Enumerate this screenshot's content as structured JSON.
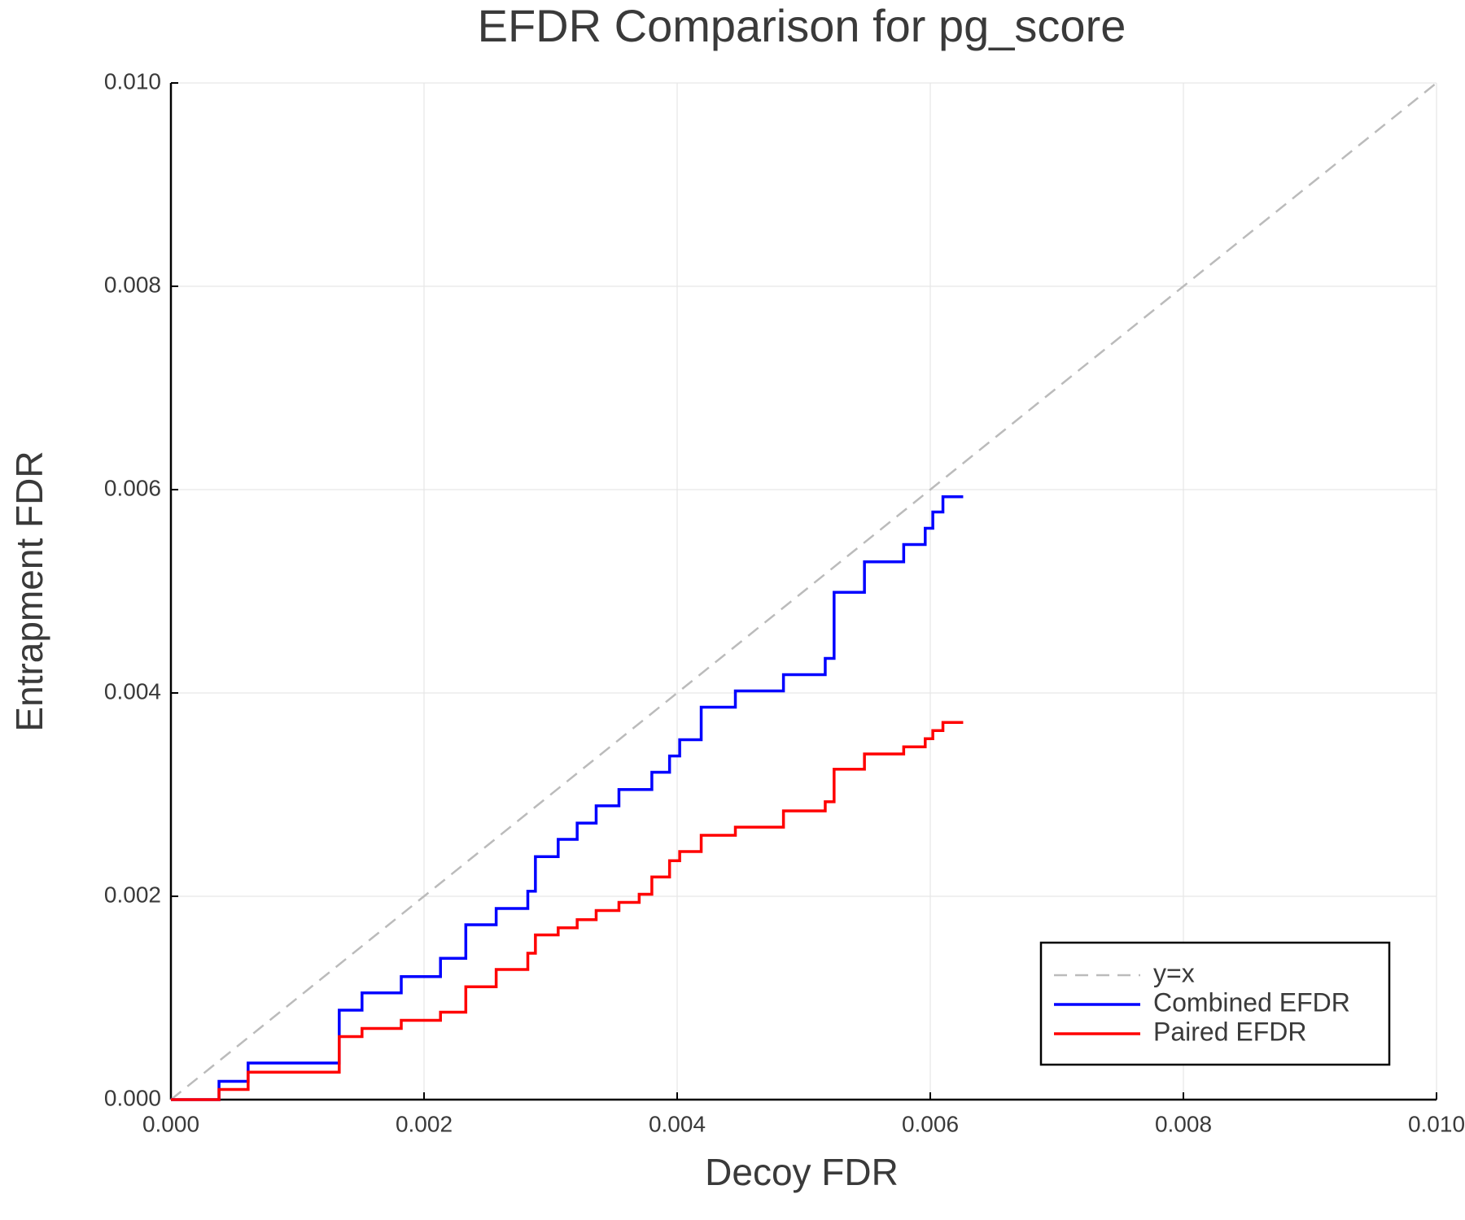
{
  "chart_data": {
    "type": "line",
    "title": "EFDR Comparison for pg_score",
    "xlabel": "Decoy FDR",
    "ylabel": "Entrapment FDR",
    "xlim": [
      0,
      0.01
    ],
    "ylim": [
      0,
      0.01
    ],
    "xticks": [
      {
        "value": 0,
        "label": "0.000"
      },
      0.002,
      0.004,
      0.006,
      0.008,
      {
        "value": 0.01,
        "label": "0.010"
      }
    ],
    "yticks": [
      {
        "value": 0,
        "label": "0.000"
      },
      0.002,
      0.004,
      0.006,
      0.008,
      {
        "value": 0.01,
        "label": "0.010"
      }
    ],
    "grid": true,
    "legend": "bottom right",
    "series": [
      {
        "name": "y=x",
        "color": "#bbbbbb",
        "linestyle": "dashed",
        "x": [
          0,
          0.01
        ],
        "values": [
          0,
          0.01
        ]
      },
      {
        "name": "Combined EFDR",
        "color": "#0000ff",
        "linestyle": "solid",
        "x": [
          0,
          0.00038,
          0.00038,
          0.00061,
          0.00061,
          0.00133,
          0.00133,
          0.00151,
          0.00151,
          0.00182,
          0.00182,
          0.00213,
          0.00213,
          0.00233,
          0.00233,
          0.00257,
          0.00257,
          0.00282,
          0.00282,
          0.00288,
          0.00288,
          0.00306,
          0.00306,
          0.00321,
          0.00321,
          0.00336,
          0.00336,
          0.00354,
          0.00354,
          0.0038,
          0.0038,
          0.00394,
          0.00394,
          0.00402,
          0.00402,
          0.00419,
          0.00419,
          0.00446,
          0.00446,
          0.00484,
          0.00484,
          0.00517,
          0.00517,
          0.00524,
          0.00524,
          0.00548,
          0.00548,
          0.00579,
          0.00579,
          0.00596,
          0.00596,
          0.00602,
          0.00602,
          0.0061,
          0.0061,
          0.00626
        ],
        "values": [
          0,
          0,
          0.00018,
          0.00018,
          0.00036,
          0.00036,
          0.00088,
          0.00088,
          0.00105,
          0.00105,
          0.00121,
          0.00121,
          0.00139,
          0.00139,
          0.00172,
          0.00172,
          0.00188,
          0.00188,
          0.00205,
          0.00205,
          0.00239,
          0.00239,
          0.00256,
          0.00256,
          0.00272,
          0.00272,
          0.00289,
          0.00289,
          0.00305,
          0.00305,
          0.00322,
          0.00322,
          0.00338,
          0.00338,
          0.00354,
          0.00354,
          0.00386,
          0.00386,
          0.00402,
          0.00402,
          0.00418,
          0.00418,
          0.00434,
          0.00434,
          0.00499,
          0.00499,
          0.00529,
          0.00529,
          0.00546,
          0.00546,
          0.00562,
          0.00562,
          0.00578,
          0.00578,
          0.00593,
          0.00593
        ]
      },
      {
        "name": "Paired EFDR",
        "color": "#ff0000",
        "linestyle": "solid",
        "x": [
          0,
          0.00038,
          0.00038,
          0.00061,
          0.00061,
          0.00133,
          0.00133,
          0.00151,
          0.00151,
          0.00182,
          0.00182,
          0.00213,
          0.00213,
          0.00233,
          0.00233,
          0.00257,
          0.00257,
          0.00282,
          0.00282,
          0.00288,
          0.00288,
          0.00306,
          0.00306,
          0.00321,
          0.00321,
          0.00336,
          0.00336,
          0.00354,
          0.00354,
          0.0037,
          0.0037,
          0.0038,
          0.0038,
          0.00394,
          0.00394,
          0.00402,
          0.00402,
          0.00419,
          0.00419,
          0.00446,
          0.00446,
          0.00484,
          0.00484,
          0.00517,
          0.00517,
          0.00524,
          0.00524,
          0.00548,
          0.00548,
          0.00579,
          0.00579,
          0.00596,
          0.00596,
          0.00602,
          0.00602,
          0.0061,
          0.0061,
          0.00626
        ],
        "values": [
          0,
          0,
          0.0001,
          0.0001,
          0.00027,
          0.00027,
          0.00062,
          0.00062,
          0.0007,
          0.0007,
          0.00078,
          0.00078,
          0.00086,
          0.00086,
          0.00111,
          0.00111,
          0.00128,
          0.00128,
          0.00144,
          0.00144,
          0.00162,
          0.00162,
          0.00169,
          0.00169,
          0.00177,
          0.00177,
          0.00186,
          0.00186,
          0.00194,
          0.00194,
          0.00202,
          0.00202,
          0.00219,
          0.00219,
          0.00235,
          0.00235,
          0.00244,
          0.00244,
          0.0026,
          0.0026,
          0.00268,
          0.00268,
          0.00284,
          0.00284,
          0.00293,
          0.00293,
          0.00325,
          0.00325,
          0.0034,
          0.0034,
          0.00347,
          0.00347,
          0.00355,
          0.00355,
          0.00363,
          0.00363,
          0.00371,
          0.00371
        ]
      }
    ]
  }
}
